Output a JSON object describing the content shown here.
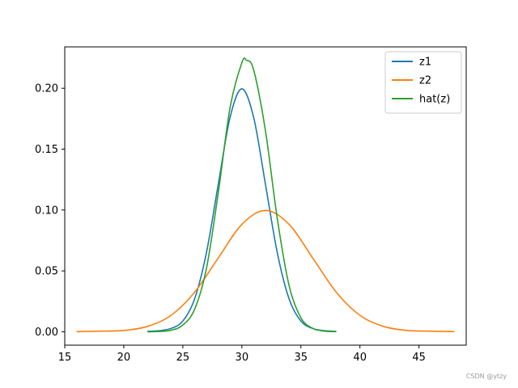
{
  "chart_data": {
    "type": "line",
    "title": "",
    "xlabel": "",
    "ylabel": "",
    "xlim": [
      15,
      49
    ],
    "ylim": [
      -0.011,
      0.234
    ],
    "x_ticks": [
      15,
      20,
      25,
      30,
      35,
      40,
      45
    ],
    "y_ticks": [
      0.0,
      0.05,
      0.1,
      0.15,
      0.2
    ],
    "y_tick_labels": [
      "0.00",
      "0.05",
      "0.10",
      "0.15",
      "0.20"
    ],
    "grid": false,
    "legend_position": "top-right",
    "series": [
      {
        "name": "z1",
        "color": "#1f77b4",
        "x": [
          22,
          23,
          24,
          25,
          26,
          27,
          28,
          29,
          30,
          31,
          32,
          33,
          34,
          35,
          36,
          37,
          38
        ],
        "y": [
          0.0003,
          0.0009,
          0.0027,
          0.0088,
          0.027,
          0.065,
          0.121,
          0.176,
          0.1995,
          0.176,
          0.121,
          0.065,
          0.027,
          0.0088,
          0.0027,
          0.0009,
          0.0003
        ]
      },
      {
        "name": "z2",
        "color": "#ff7f0e",
        "x": [
          16,
          18,
          20,
          22,
          24,
          26,
          28,
          30,
          32,
          34,
          36,
          38,
          40,
          42,
          44,
          46,
          48
        ],
        "y": [
          0.0001,
          0.0005,
          0.0011,
          0.0044,
          0.0135,
          0.0325,
          0.0606,
          0.0882,
          0.0997,
          0.0882,
          0.0606,
          0.0325,
          0.0135,
          0.0044,
          0.0011,
          0.0005,
          0.0001
        ]
      },
      {
        "name": "hat(z)",
        "color": "#2ca02c",
        "x": [
          22,
          23,
          24,
          25,
          26,
          27,
          28,
          29,
          30,
          30.4,
          31,
          32,
          33,
          34,
          35,
          36,
          37,
          38
        ],
        "y": [
          0.0,
          0.0002,
          0.0012,
          0.0055,
          0.0185,
          0.052,
          0.114,
          0.184,
          0.221,
          0.223,
          0.215,
          0.165,
          0.093,
          0.038,
          0.0115,
          0.0028,
          0.0005,
          0.0001
        ]
      }
    ]
  },
  "watermark": "CSDN @ytzy"
}
